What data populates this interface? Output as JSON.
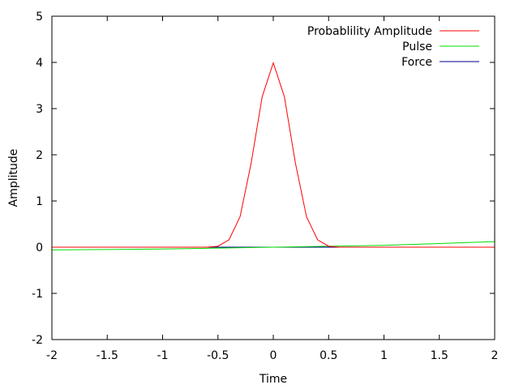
{
  "chart_data": {
    "type": "line",
    "title": "",
    "xlabel": "Time",
    "ylabel": "Amplitude",
    "xlim": [
      -2,
      2
    ],
    "ylim": [
      -2,
      5
    ],
    "xticks": [
      -2,
      -1.5,
      -1,
      -0.5,
      0,
      0.5,
      1,
      1.5,
      2
    ],
    "xtick_labels": [
      "-2",
      "-1.5",
      "-1",
      "-0.5",
      "0",
      "0.5",
      "1",
      "1.5",
      "2"
    ],
    "yticks": [
      -2,
      -1,
      0,
      1,
      2,
      3,
      4,
      5
    ],
    "ytick_labels": [
      "-2",
      "-1",
      "0",
      "1",
      "2",
      "3",
      "4",
      "5"
    ],
    "grid": false,
    "legend_position": "top-right",
    "series": [
      {
        "name": "Probablility Amplitude",
        "color": "#ff0000",
        "x": [
          -2,
          -1.5,
          -1,
          -0.6,
          -0.5,
          -0.4,
          -0.3,
          -0.2,
          -0.1,
          0,
          0.1,
          0.2,
          0.3,
          0.4,
          0.5,
          0.6,
          1,
          1.5,
          2
        ],
        "y": [
          0,
          0,
          0,
          0,
          0.02,
          0.16,
          0.66,
          1.82,
          3.26,
          3.99,
          3.26,
          1.82,
          0.66,
          0.16,
          0.02,
          0,
          0,
          0,
          0
        ]
      },
      {
        "name": "Pulse",
        "color": "#00dd00",
        "x": [
          -2,
          -1.5,
          -1,
          -0.5,
          0,
          0.5,
          1,
          1.5,
          2
        ],
        "y": [
          -0.06,
          -0.05,
          -0.04,
          -0.02,
          0,
          0.02,
          0.04,
          0.08,
          0.12
        ]
      },
      {
        "name": "Force",
        "color": "#00008b",
        "x": [
          -2,
          -1,
          0,
          1,
          2
        ],
        "y": [
          0,
          0,
          0,
          0,
          0
        ]
      }
    ]
  }
}
